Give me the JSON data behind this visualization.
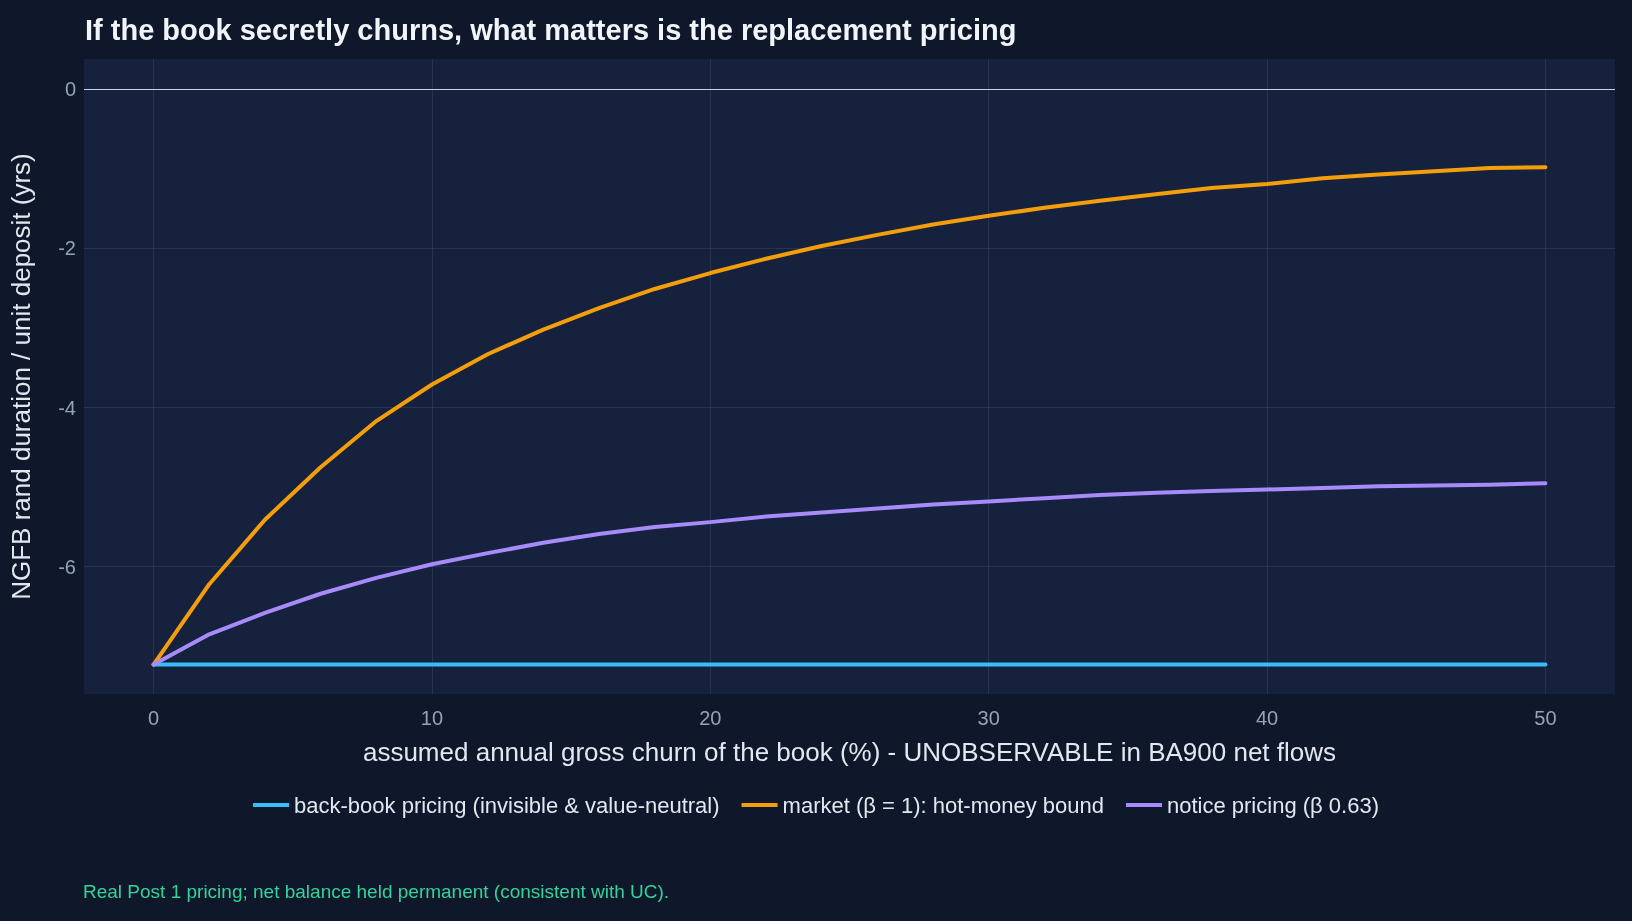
{
  "chart_data": {
    "type": "line",
    "title": "If the book secretly churns, what matters is the replacement pricing",
    "xlabel": "assumed annual gross churn of the book (%) - UNOBSERVABLE in BA900 net flows",
    "ylabel": "NGFB rand duration / unit deposit (yrs)",
    "annotations": [
      "Real Post 1 pricing; net balance held permanent (consistent with UC)."
    ],
    "x": [
      0,
      2,
      4,
      6,
      8,
      10,
      12,
      14,
      16,
      18,
      20,
      22,
      24,
      26,
      28,
      30,
      32,
      34,
      36,
      38,
      40,
      42,
      44,
      46,
      48,
      50
    ],
    "series": [
      {
        "name": "back-book pricing (invisible & value-neutral)",
        "color": "#38bdf8",
        "values": [
          -7.23,
          -7.23,
          -7.23,
          -7.23,
          -7.23,
          -7.23,
          -7.23,
          -7.23,
          -7.23,
          -7.23,
          -7.23,
          -7.23,
          -7.23,
          -7.23,
          -7.23,
          -7.23,
          -7.23,
          -7.23,
          -7.23,
          -7.23,
          -7.23,
          -7.23,
          -7.23,
          -7.23,
          -7.23,
          -7.23
        ]
      },
      {
        "name": "market (β = 1): hot-money bound",
        "color": "#f59e0b",
        "values": [
          -7.23,
          -6.22,
          -5.41,
          -4.75,
          -4.17,
          -3.71,
          -3.33,
          -3.02,
          -2.75,
          -2.51,
          -2.31,
          -2.13,
          -1.97,
          -1.83,
          -1.7,
          -1.59,
          -1.49,
          -1.4,
          -1.32,
          -1.24,
          -1.19,
          -1.12,
          -1.07,
          -1.03,
          -0.99,
          -0.98
        ]
      },
      {
        "name": "notice pricing (β 0.63)",
        "color": "#a78bfa",
        "values": [
          -7.23,
          -6.85,
          -6.58,
          -6.34,
          -6.14,
          -5.97,
          -5.83,
          -5.7,
          -5.59,
          -5.5,
          -5.44,
          -5.37,
          -5.32,
          -5.27,
          -5.22,
          -5.18,
          -5.14,
          -5.1,
          -5.07,
          -5.05,
          -5.03,
          -5.01,
          -4.99,
          -4.98,
          -4.97,
          -4.95
        ]
      }
    ],
    "xlim": [
      -2.5,
      52.5
    ],
    "xticks": [
      0,
      10,
      20,
      30,
      40,
      50
    ],
    "ylim": [
      -7.6,
      0.38
    ],
    "yticks": [
      -6,
      -4,
      -2,
      0
    ],
    "ref_lines": [
      {
        "axis": "y",
        "value": 0,
        "label": null,
        "color": "#cbd5e1"
      }
    ],
    "grid": true,
    "legend": "bottom",
    "marker": "none",
    "line_style": "solid"
  }
}
